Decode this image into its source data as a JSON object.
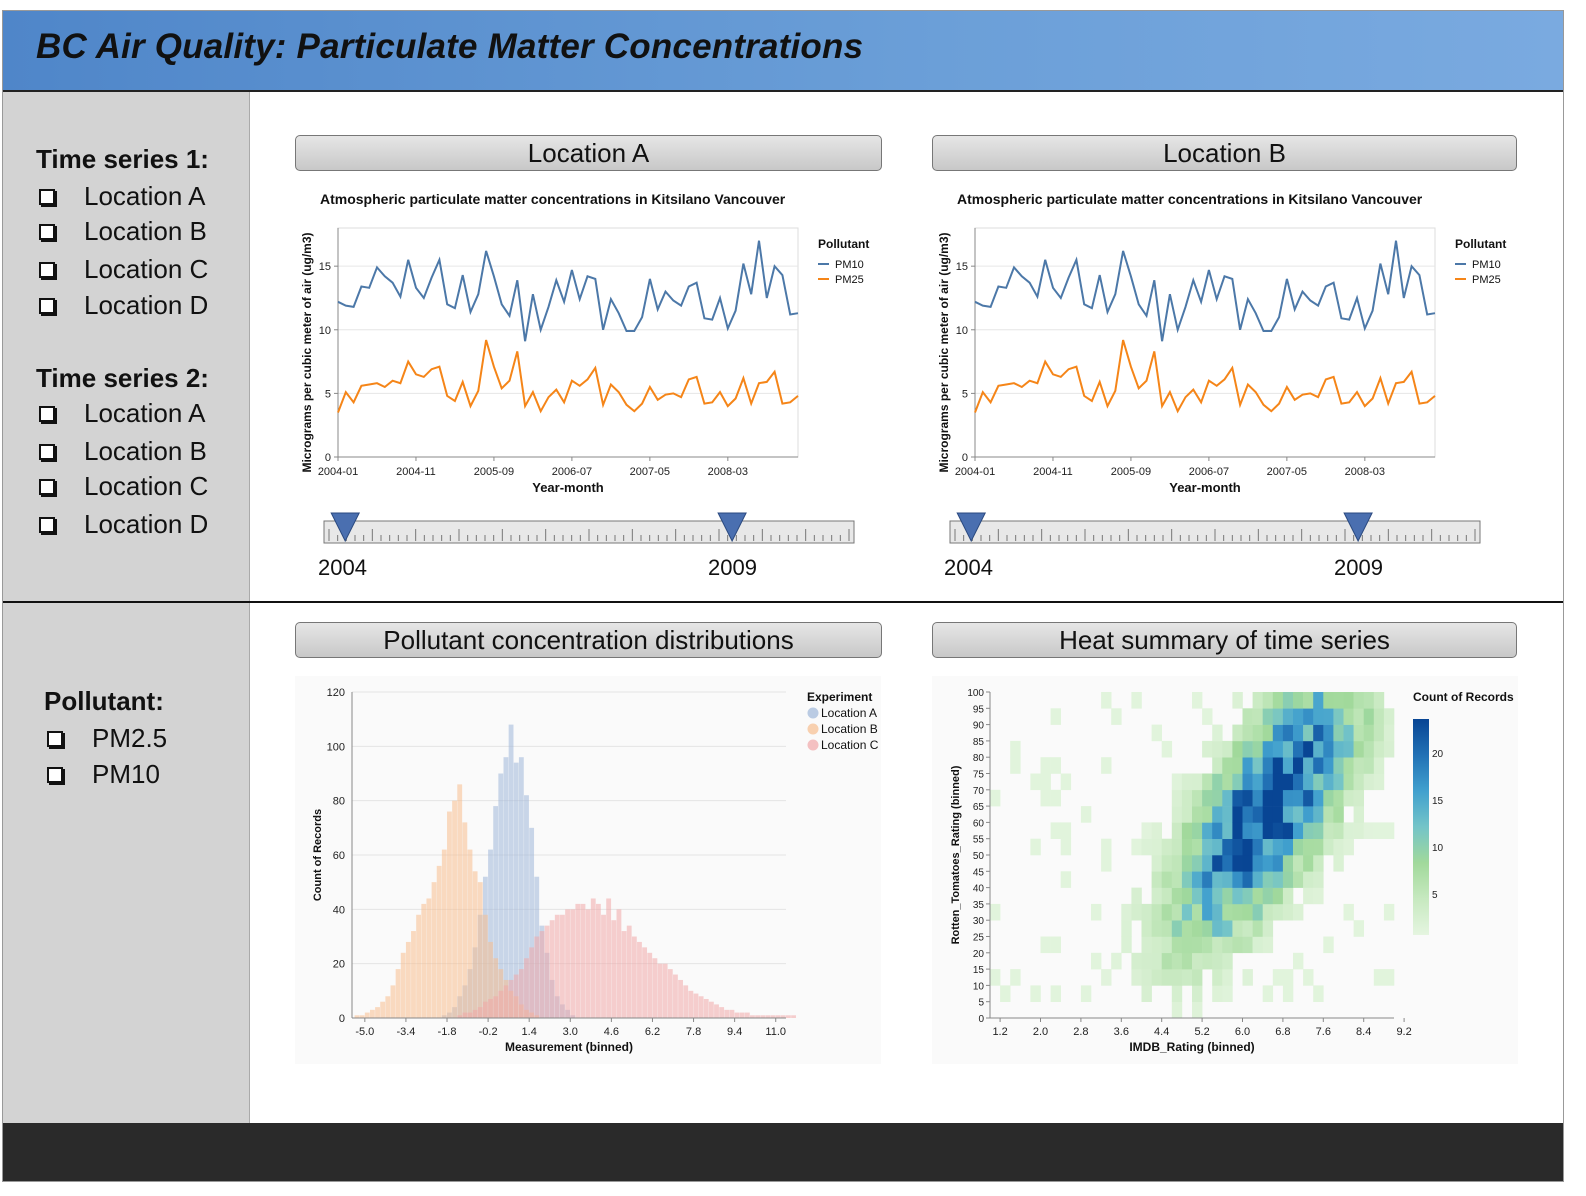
{
  "header": {
    "title": "BC Air Quality: Particulate Matter Concentrations"
  },
  "sidebar": {
    "ts1_heading": "Time series 1:",
    "ts1_items": [
      "Location A",
      "Location B",
      "Location C",
      "Location D"
    ],
    "ts2_heading": "Time series 2:",
    "ts2_items": [
      "Location A",
      "Location B",
      "Location C",
      "Location D"
    ],
    "pollutant_heading": "Pollutant:",
    "pollutant_items": [
      "PM2.5",
      "PM10"
    ]
  },
  "panels": {
    "location_a": "Location A",
    "location_b": "Location B",
    "distributions": "Pollutant concentration distributions",
    "heat": "Heat summary of time series"
  },
  "sliders": {
    "a": {
      "start_label": "2004",
      "end_label": "2009",
      "start_pos": 0.04,
      "end_pos": 0.77
    },
    "b": {
      "start_label": "2004",
      "end_label": "2009",
      "start_pos": 0.04,
      "end_pos": 0.77
    }
  },
  "colors": {
    "pm10": "#4c78a8",
    "pm25": "#f58518",
    "header": "#5b8fd0"
  },
  "chart_data": [
    {
      "id": "ts_a",
      "type": "line",
      "title": "Atmospheric particulate matter concentrations in Kitsilano Vancouver",
      "xlabel": "Year-month",
      "ylabel": "Micrograms per cubic meter of air (ug/m3)",
      "x_ticks": [
        "2004-01",
        "2004-11",
        "2005-09",
        "2006-07",
        "2007-05",
        "2008-03"
      ],
      "ylim": [
        0,
        18
      ],
      "y_ticks": [
        0,
        5,
        10,
        15
      ],
      "legend_title": "Pollutant",
      "x_start": "2004-01",
      "series": [
        {
          "name": "PM10",
          "values": [
            12.2,
            11.9,
            11.8,
            13.4,
            13.3,
            14.9,
            14.2,
            13.7,
            12.6,
            15.5,
            13.3,
            12.5,
            14.1,
            15.5,
            12.0,
            11.7,
            14.3,
            11.4,
            12.8,
            16.2,
            14.2,
            12.0,
            11.1,
            13.9,
            9.1,
            12.8,
            10.0,
            11.8,
            13.9,
            12.2,
            14.7,
            12.4,
            14.2,
            14.0,
            10.0,
            12.4,
            11.3,
            9.9,
            9.9,
            11.0,
            14.0,
            11.6,
            13.0,
            12.3,
            11.9,
            13.4,
            13.7,
            10.9,
            10.8,
            12.5,
            10.1,
            11.5,
            15.2,
            12.8,
            17.0,
            12.5,
            15.0,
            14.3,
            11.2,
            11.3
          ]
        },
        {
          "name": "PM25",
          "values": [
            3.5,
            5.1,
            4.3,
            5.6,
            5.7,
            5.8,
            5.5,
            6.0,
            5.8,
            7.5,
            6.5,
            6.3,
            6.9,
            7.1,
            4.8,
            4.4,
            5.9,
            4.0,
            5.2,
            9.2,
            7.1,
            5.4,
            6.0,
            8.3,
            4.0,
            5.1,
            3.6,
            4.7,
            5.3,
            4.3,
            6.0,
            5.6,
            6.1,
            7.0,
            4.1,
            5.7,
            5.1,
            4.1,
            3.6,
            4.2,
            5.5,
            4.5,
            4.9,
            5.0,
            4.7,
            6.1,
            6.3,
            4.2,
            4.3,
            5.1,
            4.0,
            4.6,
            6.2,
            4.2,
            5.8,
            5.9,
            6.7,
            4.2,
            4.3,
            4.8
          ]
        }
      ]
    },
    {
      "id": "ts_b",
      "type": "line",
      "title": "Atmospheric particulate matter concentrations in Kitsilano Vancouver",
      "xlabel": "Year-month",
      "ylabel": "Micrograms per cubic meter of air (ug/m3)",
      "x_ticks": [
        "2004-01",
        "2004-11",
        "2005-09",
        "2006-07",
        "2007-05",
        "2008-03"
      ],
      "ylim": [
        0,
        18
      ],
      "y_ticks": [
        0,
        5,
        10,
        15
      ],
      "legend_title": "Pollutant",
      "x_start": "2004-01",
      "series": [
        {
          "name": "PM10",
          "values": [
            12.2,
            11.9,
            11.8,
            13.4,
            13.3,
            14.9,
            14.2,
            13.7,
            12.6,
            15.5,
            13.3,
            12.5,
            14.1,
            15.5,
            12.0,
            11.7,
            14.3,
            11.4,
            12.8,
            16.2,
            14.2,
            12.0,
            11.1,
            13.9,
            9.1,
            12.8,
            10.0,
            11.8,
            13.9,
            12.2,
            14.7,
            12.4,
            14.2,
            14.0,
            10.0,
            12.4,
            11.3,
            9.9,
            9.9,
            11.0,
            14.0,
            11.6,
            13.0,
            12.3,
            11.9,
            13.4,
            13.7,
            10.9,
            10.8,
            12.5,
            10.1,
            11.5,
            15.2,
            12.8,
            17.0,
            12.5,
            15.0,
            14.3,
            11.2,
            11.3
          ]
        },
        {
          "name": "PM25",
          "values": [
            3.5,
            5.1,
            4.3,
            5.6,
            5.7,
            5.8,
            5.5,
            6.0,
            5.8,
            7.5,
            6.5,
            6.3,
            6.9,
            7.1,
            4.8,
            4.4,
            5.9,
            4.0,
            5.2,
            9.2,
            7.1,
            5.4,
            6.0,
            8.3,
            4.0,
            5.1,
            3.6,
            4.7,
            5.3,
            4.3,
            6.0,
            5.6,
            6.1,
            7.0,
            4.1,
            5.7,
            5.1,
            4.1,
            3.6,
            4.2,
            5.5,
            4.5,
            4.9,
            5.0,
            4.7,
            6.1,
            6.3,
            4.2,
            4.3,
            5.1,
            4.0,
            4.6,
            6.2,
            4.2,
            5.8,
            5.9,
            6.7,
            4.2,
            4.3,
            4.8
          ]
        }
      ]
    },
    {
      "id": "hist",
      "type": "bar",
      "xlabel": "Measurement (binned)",
      "ylabel": "Count of Records",
      "xlim": [
        -5.5,
        11.4
      ],
      "ylim": [
        0,
        120
      ],
      "x_ticks": [
        "-5.0",
        "-3.4",
        "-1.8",
        "-0.2",
        "1.4",
        "3.0",
        "4.6",
        "6.2",
        "7.8",
        "9.4",
        "11.0"
      ],
      "y_ticks": [
        0,
        20,
        40,
        60,
        80,
        100,
        120
      ],
      "bin_width": 0.2,
      "legend_title": "Experiment",
      "series": [
        {
          "name": "Location A",
          "color": "#9eb7d8",
          "bin_start": -2.0,
          "values": [
            1,
            2,
            4,
            8,
            12,
            18,
            26,
            38,
            52,
            62,
            78,
            90,
            96,
            108,
            94,
            96,
            82,
            70,
            52,
            34,
            24,
            14,
            8,
            5,
            3,
            1
          ]
        },
        {
          "name": "Location B",
          "color": "#f7be8e",
          "bin_start": -5.4,
          "values": [
            1,
            1,
            2,
            3,
            4,
            6,
            8,
            12,
            18,
            24,
            28,
            32,
            38,
            42,
            44,
            50,
            56,
            62,
            76,
            80,
            86,
            72,
            62,
            54,
            50,
            38,
            28,
            22,
            18,
            14,
            10,
            8,
            5,
            3,
            2,
            1
          ]
        },
        {
          "name": "Location C",
          "color": "#f1a7a8",
          "bin_start": -1.4,
          "values": [
            1,
            2,
            2,
            3,
            4,
            6,
            7,
            8,
            10,
            12,
            14,
            16,
            18,
            22,
            26,
            30,
            32,
            34,
            36,
            38,
            38,
            40,
            40,
            42,
            42,
            40,
            44,
            42,
            38,
            44,
            36,
            40,
            32,
            34,
            30,
            28,
            26,
            24,
            22,
            20,
            20,
            18,
            16,
            14,
            12,
            10,
            9,
            8,
            7,
            6,
            5,
            4,
            3,
            3,
            2,
            2,
            2,
            1,
            1,
            1,
            1,
            1,
            1,
            1,
            1,
            1
          ]
        }
      ]
    },
    {
      "id": "heat",
      "type": "heatmap",
      "xlabel": "IMDB_Rating (binned)",
      "ylabel": "Rotten_Tomatoes_Rating (binned)",
      "x_ticks": [
        "1.2",
        "2.0",
        "2.8",
        "3.6",
        "4.4",
        "5.2",
        "6.0",
        "6.8",
        "7.6",
        "8.4",
        "9.2"
      ],
      "y_ticks": [
        0,
        5,
        10,
        15,
        20,
        25,
        30,
        35,
        40,
        45,
        50,
        55,
        60,
        65,
        70,
        75,
        80,
        85,
        90,
        95,
        100
      ],
      "legend_title": "Count of Records",
      "legend_ticks": [
        5,
        10,
        15,
        20
      ],
      "count_max": 23
    }
  ]
}
